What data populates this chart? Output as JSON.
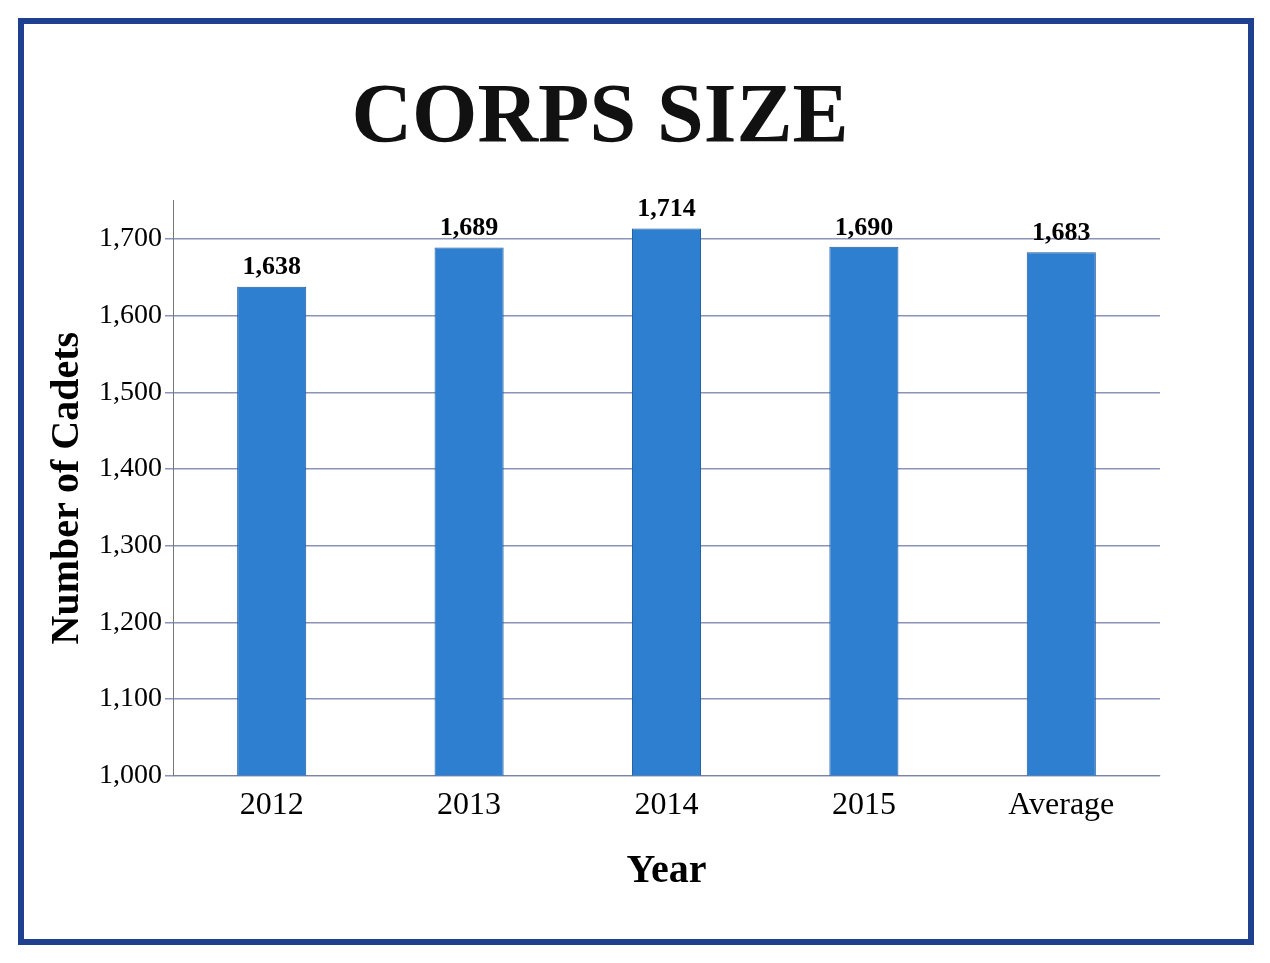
{
  "chart_data": {
    "type": "bar",
    "title": "CORPS SIZE",
    "xlabel": "Year",
    "ylabel": "Number of Cadets",
    "categories": [
      "2012",
      "2013",
      "2014",
      "2015",
      "Average"
    ],
    "values": [
      1638,
      1689,
      1714,
      1690,
      1683
    ],
    "color": "#2f7fd0",
    "ylim": [
      1000,
      1750
    ],
    "yticks": [
      {
        "value": 1000,
        "label": "1,000"
      },
      {
        "value": 1100,
        "label": "1,100"
      },
      {
        "value": 1200,
        "label": "1,200"
      },
      {
        "value": 1300,
        "label": "1,300"
      },
      {
        "value": 1400,
        "label": "1,400"
      },
      {
        "value": 1500,
        "label": "1,500"
      },
      {
        "value": 1600,
        "label": "1,600"
      },
      {
        "value": 1700,
        "label": "1,700"
      }
    ],
    "value_labels": [
      "1,638",
      "1,689",
      "1,714",
      "1,690",
      "1,683"
    ],
    "grid": "y",
    "legend": false
  }
}
